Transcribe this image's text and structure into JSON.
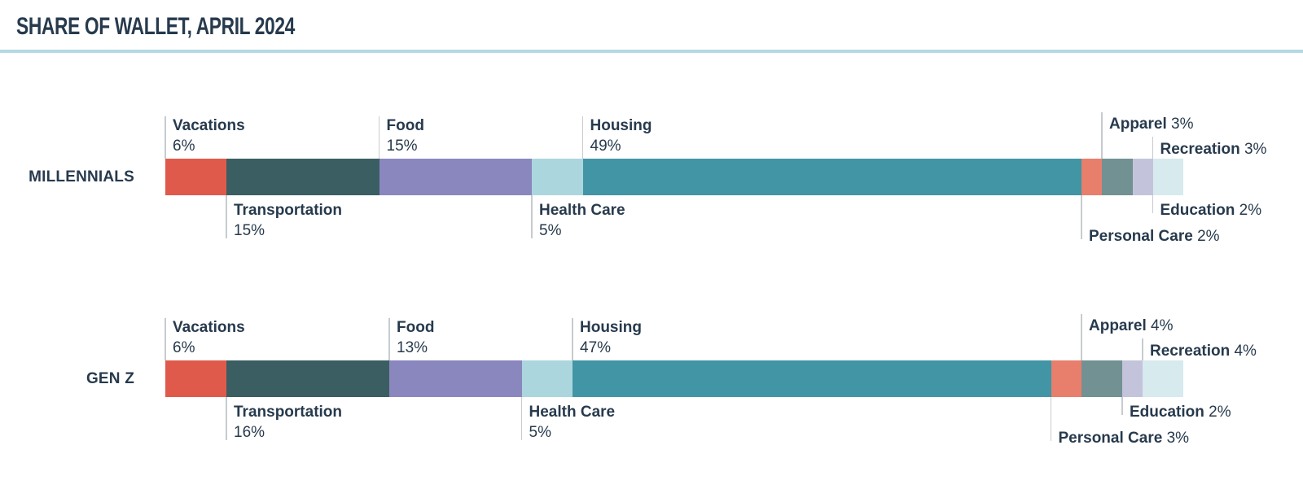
{
  "title": "SHARE OF WALLET, APRIL 2024",
  "colors": {
    "background": "#ffffff",
    "text": "#273a4d",
    "divider": "#b3dae2",
    "tick": "#c7cbcf"
  },
  "chart_data": {
    "type": "bar",
    "orientation": "horizontal-stacked",
    "title": "SHARE OF WALLET, APRIL 2024",
    "unit": "%",
    "value_suffix": "%",
    "xlim": [
      0,
      100
    ],
    "grid": false,
    "legend": "inline-callout-labels",
    "categories": [
      "Vacations",
      "Transportation",
      "Food",
      "Health Care",
      "Housing",
      "Personal Care",
      "Apparel",
      "Education",
      "Recreation"
    ],
    "category_colors": [
      "#e05a4b",
      "#3a5e62",
      "#8a87be",
      "#acd6de",
      "#4295a4",
      "#e87e6c",
      "#729193",
      "#c4c3dc",
      "#d7eaee"
    ],
    "series": [
      {
        "name": "MILLENNIALS",
        "values": [
          6,
          15,
          15,
          5,
          49,
          2,
          3,
          2,
          3
        ]
      },
      {
        "name": "GEN Z",
        "values": [
          6,
          16,
          13,
          5,
          47,
          3,
          4,
          2,
          4
        ]
      }
    ]
  }
}
